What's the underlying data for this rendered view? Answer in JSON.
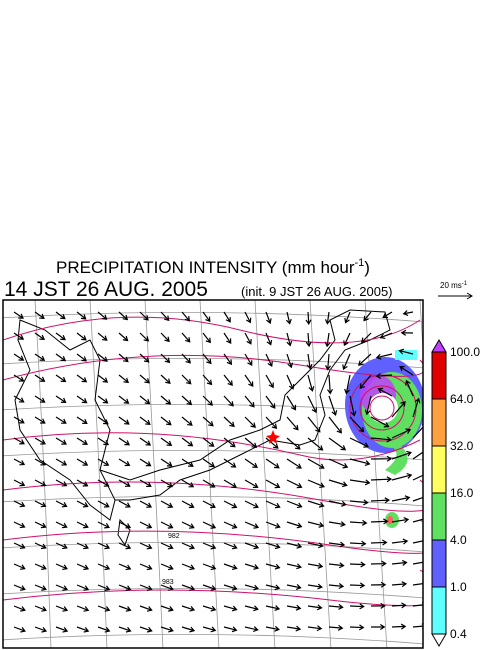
{
  "header": {
    "title": "PRECIPITATION INTENSITY (mm hour",
    "title_exponent": "-1",
    "title_close": ")",
    "time": "14 JST 26 AUG. 2005",
    "init": "(init. 9 JST 26 AUG. 2005)"
  },
  "wind_reference": {
    "label": "20 ms",
    "exponent": "-1"
  },
  "colorbar": {
    "levels": [
      "100.0",
      "64.0",
      "32.0",
      "16.0",
      "4.0",
      "1.0",
      "0.4"
    ],
    "colors": [
      "#e00000",
      "#ffa040",
      "#ffff60",
      "#60e060",
      "#6060ff",
      "#60ffff"
    ],
    "above_color": "#c040ff",
    "below_color": "#ffffff"
  },
  "contour_labels": [
    "982",
    "983"
  ]
}
